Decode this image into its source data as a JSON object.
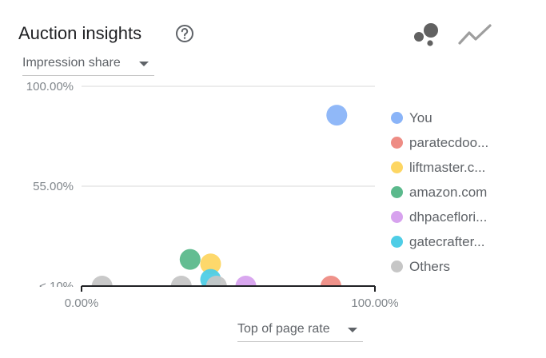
{
  "header": {
    "title": "Auction insights",
    "help_icon": "help-circle-icon",
    "view_toggle": [
      {
        "name": "bubble-chart-icon",
        "active": true
      },
      {
        "name": "line-chart-icon",
        "active": false
      }
    ]
  },
  "y_metric_dropdown": {
    "label": "Impression share"
  },
  "x_metric_dropdown": {
    "label": "Top of page rate"
  },
  "chart_data": {
    "type": "scatter",
    "xlabel": "Top of page rate",
    "ylabel": "Impression share",
    "x_ticks": [
      "0.00%",
      "100.00%"
    ],
    "y_ticks": [
      "< 10%",
      "55.00%",
      "100.00%"
    ],
    "xlim": [
      0,
      100
    ],
    "ylim": [
      10,
      100
    ],
    "grid": true,
    "legend_position": "right",
    "series": [
      {
        "name": "You",
        "color": "#8ab4f8",
        "points": [
          {
            "x": 87,
            "y": 87
          }
        ]
      },
      {
        "name": "paratecdoo...",
        "color": "#ee8c84",
        "points": [
          {
            "x": 85,
            "y": 10
          }
        ]
      },
      {
        "name": "liftmaster.c...",
        "color": "#fdd663",
        "points": [
          {
            "x": 44,
            "y": 20
          }
        ]
      },
      {
        "name": "amazon.com",
        "color": "#5bb98c",
        "points": [
          {
            "x": 37,
            "y": 22
          }
        ]
      },
      {
        "name": "dhpaceflori...",
        "color": "#d7a2ee",
        "points": [
          {
            "x": 56,
            "y": 10
          }
        ]
      },
      {
        "name": "gatecrafter...",
        "color": "#4ecde6",
        "points": [
          {
            "x": 44,
            "y": 13
          }
        ]
      },
      {
        "name": "Others",
        "color": "#c6c6c6",
        "points": [
          {
            "x": 7,
            "y": 10
          },
          {
            "x": 34,
            "y": 10
          },
          {
            "x": 46,
            "y": 10
          }
        ]
      }
    ]
  }
}
